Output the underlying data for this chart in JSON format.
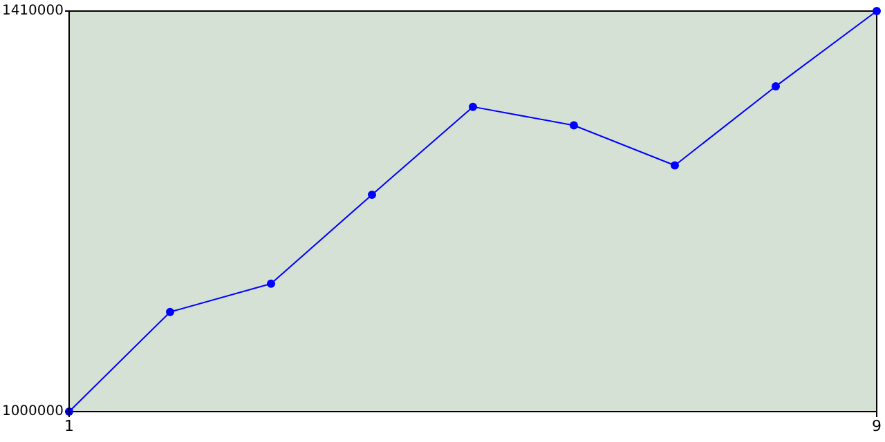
{
  "chart_data": {
    "type": "line",
    "x": [
      1,
      2,
      3,
      4,
      5,
      6,
      7,
      8,
      9
    ],
    "series": [
      {
        "color": "#0000ff",
        "values": [
          1000000,
          1102000,
          1131000,
          1222000,
          1312000,
          1293000,
          1252000,
          1333000,
          1410000
        ]
      }
    ],
    "xlim": [
      1,
      9
    ],
    "xticks": [
      1,
      9
    ],
    "ylim": [
      1000000,
      1410000
    ],
    "yticks": [
      1000000,
      1410000
    ],
    "marker": "circle",
    "grid": false,
    "legend": false
  }
}
